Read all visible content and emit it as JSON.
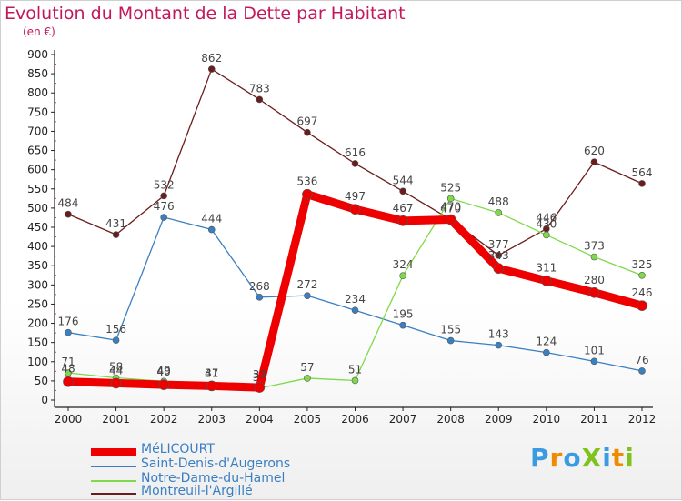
{
  "chart_data": {
    "type": "line",
    "title": "Evolution du Montant de la Dette par Habitant",
    "subtitle": "(en €)",
    "x": [
      "2000",
      "2001",
      "2002",
      "2003",
      "2004",
      "2005",
      "2006",
      "2007",
      "2008",
      "2009",
      "2010",
      "2011",
      "2012"
    ],
    "y_ticks": [
      "0",
      "50",
      "100",
      "150",
      "200",
      "250",
      "300",
      "350",
      "400",
      "450",
      "500",
      "550",
      "600",
      "650",
      "700",
      "750",
      "800",
      "850",
      "900"
    ],
    "ylim": [
      0,
      900
    ],
    "grid": false,
    "legend_position": "bottom-left",
    "series": [
      {
        "name": "Montreuil-l'Argillé",
        "color": "#6b1c1c",
        "values": [
          484,
          431,
          532,
          862,
          783,
          697,
          616,
          544,
          470,
          377,
          446,
          620,
          564
        ],
        "labels": [
          "484",
          "431",
          "532",
          "862",
          "783",
          "697",
          "616",
          "544",
          "470",
          "377",
          "446",
          "620",
          "564"
        ]
      },
      {
        "name": "Saint-Denis-d'Augerons",
        "color": "#3a7fc2",
        "values": [
          176,
          156,
          476,
          444,
          268,
          272,
          234,
          195,
          155,
          143,
          124,
          101,
          76
        ],
        "labels": [
          "176",
          "156",
          "476",
          "444",
          "268",
          "272",
          "234",
          "195",
          "155",
          "143",
          "124",
          "101",
          "76"
        ]
      },
      {
        "name": "Notre-Dame-du-Hamel",
        "color": "#7fd94a",
        "values": [
          71,
          58,
          49,
          41,
          31,
          57,
          51,
          324,
          525,
          488,
          430,
          373,
          325
        ],
        "labels": [
          "71",
          "58",
          "49",
          "41",
          "31",
          "57",
          "51",
          "324",
          "525",
          "488",
          "430",
          "373",
          "325"
        ]
      },
      {
        "name": "MéLICOURT",
        "color": "#ee0000",
        "values": [
          48,
          44,
          40,
          37,
          33,
          536,
          497,
          467,
          470,
          343,
          311,
          280,
          246
        ],
        "labels": [
          "48",
          "44",
          "40",
          "37",
          "33",
          "536",
          "497",
          "467",
          "470",
          "343",
          "311",
          "280",
          "246"
        ]
      }
    ]
  },
  "legend": [
    {
      "label": "MéLICOURT",
      "color": "#ee0000"
    },
    {
      "label": "Saint-Denis-d'Augerons",
      "color": "#3a7fc2"
    },
    {
      "label": "Notre-Dame-du-Hamel",
      "color": "#7fd94a"
    },
    {
      "label": "Montreuil-l'Argillé",
      "color": "#6b1c1c"
    }
  ],
  "logo": {
    "text": "ProXiti",
    "colors": [
      "#3a9be0",
      "#f08a00",
      "#3a9be0",
      "#7fc31c",
      "#3a9be0",
      "#f08a00",
      "#7fc31c"
    ]
  }
}
